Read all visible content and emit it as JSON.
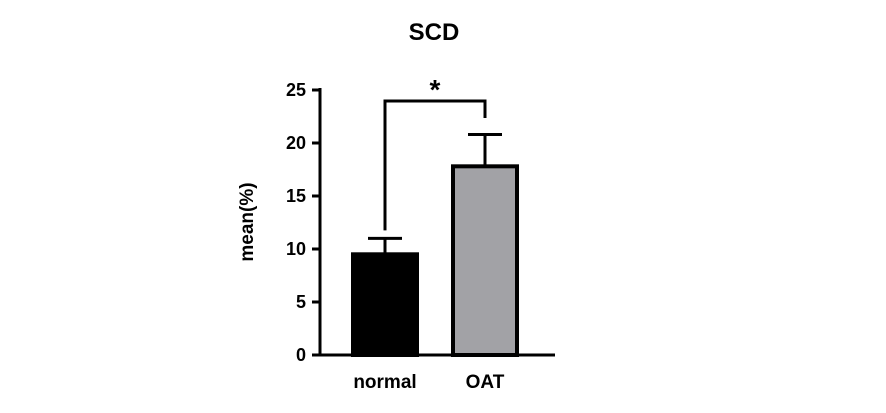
{
  "chart_data": {
    "type": "bar",
    "title": "SCD",
    "xlabel": "",
    "ylabel": "mean(%)",
    "ylim": [
      0,
      25
    ],
    "yticks": [
      0,
      5,
      10,
      15,
      20,
      25
    ],
    "categories": [
      "normal",
      "OAT"
    ],
    "values": [
      9.5,
      17.8
    ],
    "errors": [
      1.5,
      3.0
    ],
    "colors": [
      "#000000",
      "#a2a2a6"
    ],
    "significance": {
      "between": [
        0,
        1
      ],
      "label": "*"
    },
    "grid": false,
    "legend": "none"
  }
}
